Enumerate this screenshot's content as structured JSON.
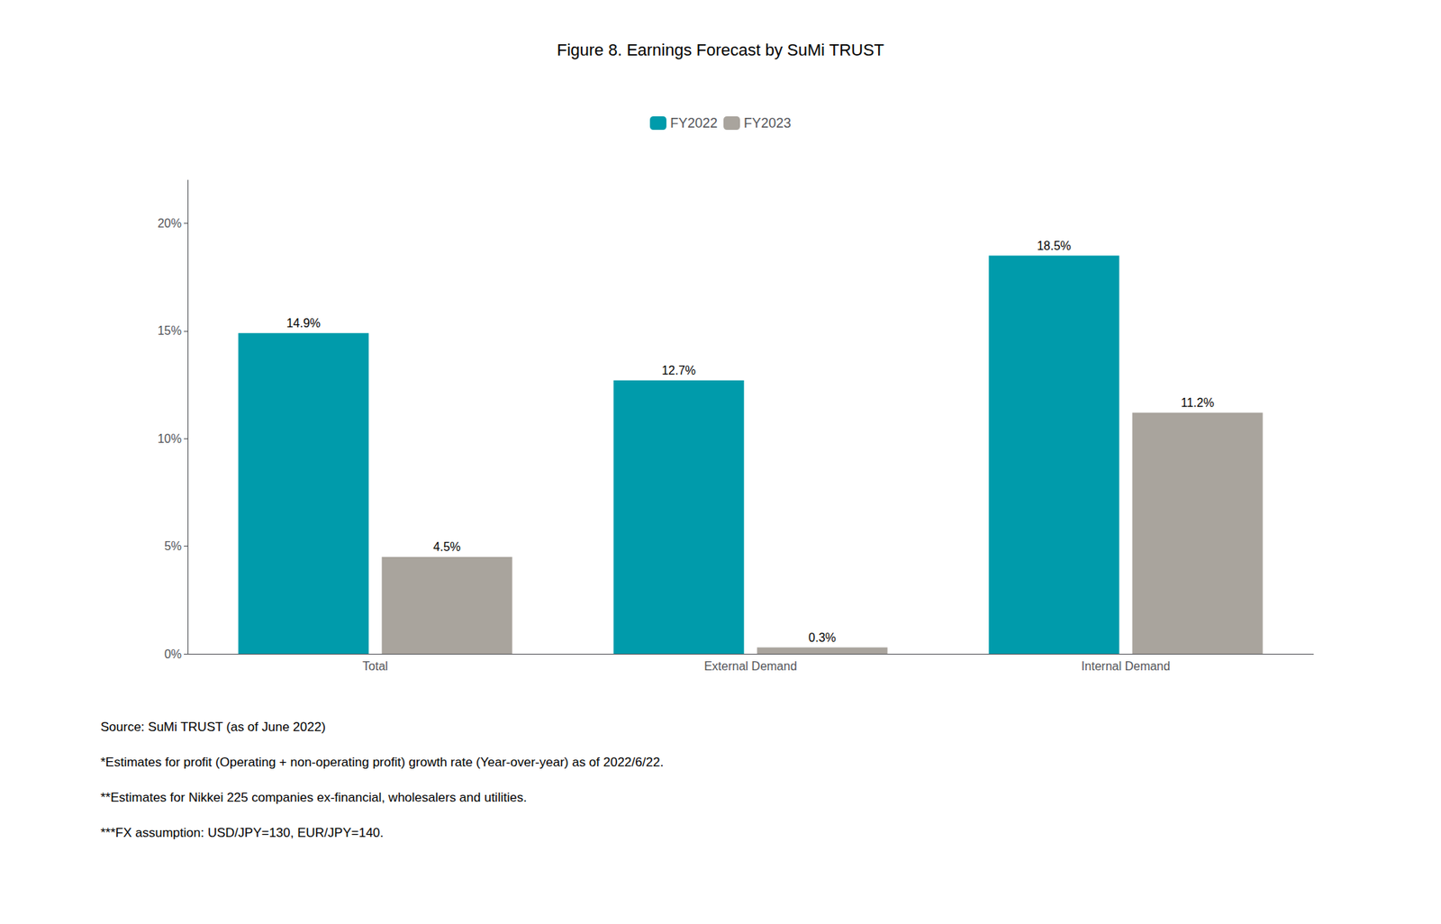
{
  "chart_data": {
    "type": "bar",
    "title": "Figure 8. Earnings Forecast by SuMi TRUST",
    "categories": [
      "Total",
      "External Demand",
      "Internal Demand"
    ],
    "series": [
      {
        "name": "FY2022",
        "color": "#009BAB",
        "values": [
          14.9,
          12.7,
          18.5
        ],
        "value_labels": [
          "14.9%",
          "12.7%",
          "18.5%"
        ]
      },
      {
        "name": "FY2023",
        "color": "#A9A49D",
        "values": [
          4.5,
          0.3,
          11.2
        ],
        "value_labels": [
          "4.5%",
          "0.3%",
          "11.2%"
        ]
      }
    ],
    "ylim": [
      0,
      22
    ],
    "yticks": [
      {
        "value": 0,
        "label": "0%"
      },
      {
        "value": 5,
        "label": "5%"
      },
      {
        "value": 10,
        "label": "10%"
      },
      {
        "value": 15,
        "label": "15%"
      },
      {
        "value": 20,
        "label": "20%"
      }
    ],
    "grid": false,
    "legend": "top",
    "data_labels": true,
    "annotations": [
      "Source: SuMi TRUST (as of June 2022)",
      "*Estimates for profit (Operating + non-operating profit) growth rate (Year-over-year) as of 2022/6/22.",
      "**Estimates for Nikkei 225 companies ex-financial, wholesalers and utilities.",
      "***FX assumption: USD/JPY=130, EUR/JPY=140."
    ]
  }
}
